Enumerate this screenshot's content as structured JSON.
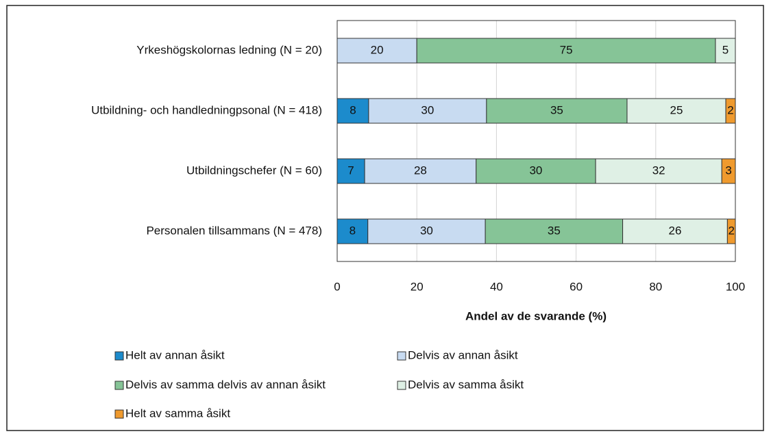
{
  "chart_data": {
    "type": "stacked_barh",
    "categories": [
      "Yrkeshögskolornas ledning (N = 20)",
      "Utbildning- och handledningpsonal (N = 418)",
      "Utbildningschefer (N = 60)",
      "Personalen tillsammans (N = 478)"
    ],
    "series": [
      {
        "name": "Helt av annan åsikt",
        "color": "#1c8bcc",
        "values": [
          null,
          7.9,
          6.9,
          7.7
        ],
        "value_labels": [
          null,
          "8",
          "7",
          "8"
        ]
      },
      {
        "name": "Delvis av annan åsikt",
        "color": "#c8dbf1",
        "values": [
          20,
          29.6,
          28.0,
          29.5
        ],
        "value_labels": [
          "20",
          "30",
          "28",
          "30"
        ]
      },
      {
        "name": "Delvis av samma delvis av annan åsikt",
        "color": "#86c497",
        "values": [
          75,
          35.3,
          30.0,
          34.5
        ],
        "value_labels": [
          "75",
          "35",
          "30",
          "35"
        ]
      },
      {
        "name": "Delvis av samma åsikt",
        "color": "#dff0e5",
        "values": [
          5,
          24.8,
          31.7,
          26.3
        ],
        "value_labels": [
          "5",
          "25",
          "32",
          "26"
        ]
      },
      {
        "name": "Helt av samma åsikt",
        "color": "#ef9a2e",
        "values": [
          null,
          2.4,
          3.4,
          2.0
        ],
        "value_labels": [
          null,
          "2",
          "3",
          "2"
        ]
      }
    ],
    "xlabel": "Andel av de svarande  (%)",
    "xlim": [
      0,
      100
    ],
    "xticks": [
      0,
      20,
      40,
      60,
      80,
      100
    ],
    "grid": true
  }
}
